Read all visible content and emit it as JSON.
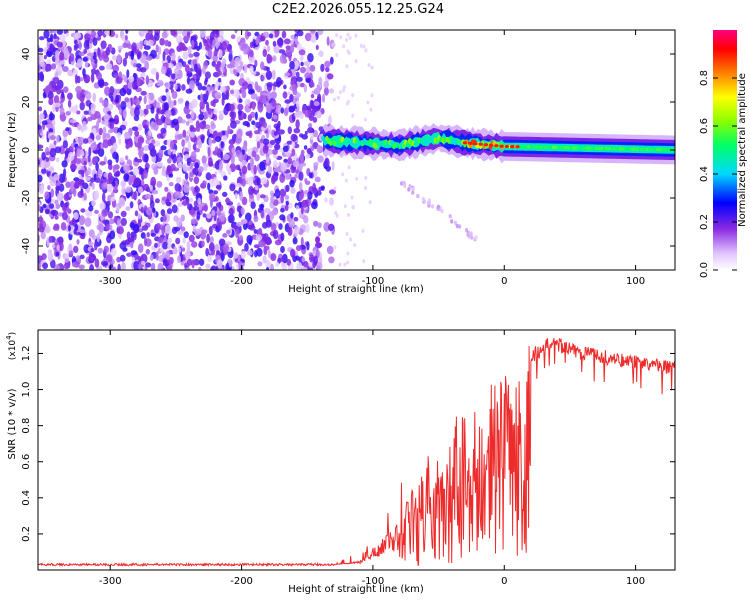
{
  "title": "C2E2.2026.055.12.25.G24",
  "chart_data": [
    {
      "type": "heatmap",
      "xlabel": "Height of straight line (km)",
      "ylabel": "Frequency (Hz)",
      "xlim": [
        -355,
        130
      ],
      "ylim": [
        -50,
        50
      ],
      "xticks": [
        -300,
        -200,
        -100,
        0,
        100
      ],
      "yticks": [
        -40,
        -20,
        0,
        20,
        40
      ],
      "colorbar": {
        "label": "Normalized spectral amplitude",
        "range": [
          0,
          1
        ],
        "ticks": [
          "0.0",
          "0.2",
          "0.4",
          "0.6",
          "0.8"
        ]
      },
      "regions": [
        {
          "name": "noise",
          "x": [
            -355,
            -130
          ],
          "y": [
            -50,
            50
          ],
          "amplitude": [
            0.05,
            0.25
          ]
        },
        {
          "name": "signal-line",
          "x": [
            -138,
            130
          ],
          "center_hz": [
            {
              "x": -138,
              "y": 4
            },
            {
              "x": -110,
              "y": 3
            },
            {
              "x": -80,
              "y": 2
            },
            {
              "x": -50,
              "y": 5
            },
            {
              "x": -30,
              "y": 3
            },
            {
              "x": -10,
              "y": 2
            },
            {
              "x": 0,
              "y": 1.5
            },
            {
              "x": 130,
              "y": 0
            }
          ],
          "peak_amplitude": 0.9
        },
        {
          "name": "faint-branch",
          "x": [
            -80,
            -20
          ],
          "y": [
            -12,
            -38
          ],
          "amplitude": [
            0.05,
            0.1
          ]
        }
      ],
      "grid": false
    },
    {
      "type": "line",
      "xlabel": "Height of straight line (km)",
      "ylabel": "SNR (10 * v/v)",
      "yscale_label": "(x10",
      "yscale_exp": "4",
      "xlim": [
        -355,
        130
      ],
      "ylim": [
        0,
        1.33
      ],
      "xticks": [
        -300,
        -200,
        -100,
        0,
        100
      ],
      "yticks": [
        "0.2",
        "0.4",
        "0.6",
        "0.8",
        "1.0",
        "1.2"
      ],
      "series": [
        {
          "color": "#ee2b2b",
          "envelope": [
            {
              "x": -355,
              "y": 0.03
            },
            {
              "x": -130,
              "y": 0.03
            },
            {
              "x": -110,
              "y": 0.05
            },
            {
              "x": -90,
              "y": 0.2
            },
            {
              "x": -70,
              "y": 0.45
            },
            {
              "x": -50,
              "y": 0.65
            },
            {
              "x": -30,
              "y": 0.9
            },
            {
              "x": -10,
              "y": 1.05
            },
            {
              "x": 10,
              "y": 1.15
            },
            {
              "x": 25,
              "y": 1.2
            },
            {
              "x": 35,
              "y": 1.26
            },
            {
              "x": 60,
              "y": 1.2
            },
            {
              "x": 100,
              "y": 1.15
            },
            {
              "x": 130,
              "y": 1.12
            }
          ]
        }
      ],
      "grid": false
    }
  ]
}
